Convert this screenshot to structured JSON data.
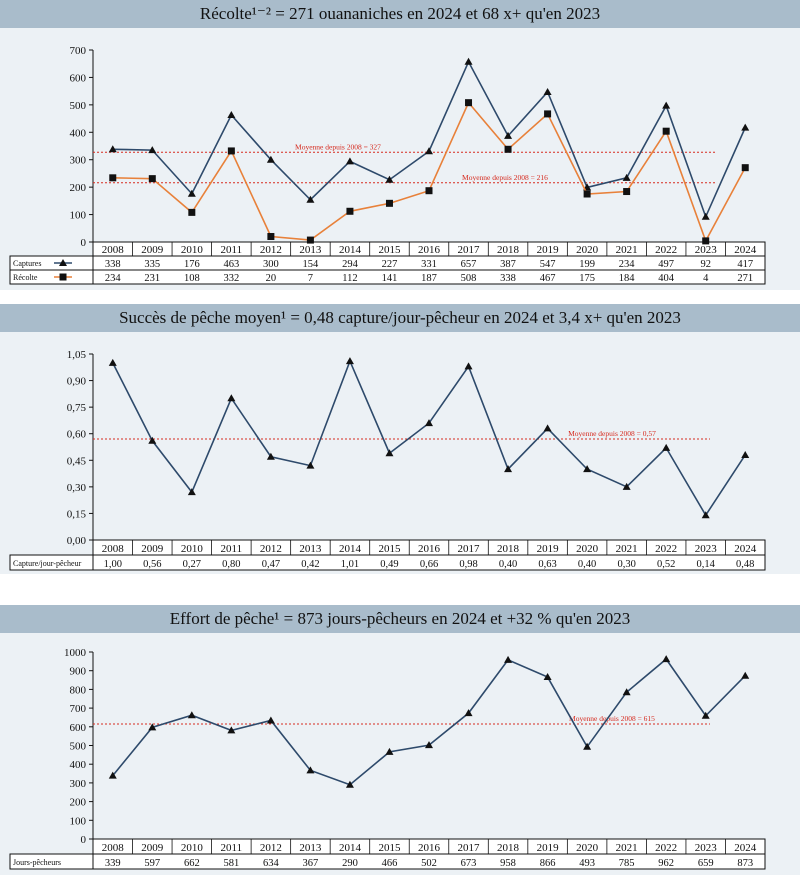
{
  "titles": [
    "Récolte¹⁻² = 271 ouananiches en 2024 et 68 x+ qu'en 2023",
    "Succès de pêche moyen¹ = 0,48 capture/jour-pêcheur en 2024 et 3,4 x+ qu'en 2023",
    "Effort de pêche¹ = 873 jours-pêcheurs en 2024 et +32 % qu'en 2023"
  ],
  "colors": {
    "band": "#a9bccb",
    "panel": "#ecf1f5",
    "navy": "#2e4a6b",
    "orange": "#e8813a",
    "avg": "#d62a1e"
  },
  "chart_data": [
    {
      "type": "line",
      "title": "Récolte¹⁻² = 271 ouananiches en 2024 et 68 x+ qu'en 2023",
      "categories": [
        "2008",
        "2009",
        "2010",
        "2011",
        "2012",
        "2013",
        "2014",
        "2015",
        "2016",
        "2017",
        "2018",
        "2019",
        "2020",
        "2021",
        "2022",
        "2023",
        "2024"
      ],
      "ylim": [
        0,
        700
      ],
      "yticks": [
        "0",
        "100",
        "200",
        "300",
        "400",
        "500",
        "600",
        "700"
      ],
      "series": [
        {
          "name": "Captures",
          "marker": "triangle",
          "color": "#2e4a6b",
          "values": [
            338,
            335,
            176,
            463,
            300,
            154,
            294,
            227,
            331,
            657,
            387,
            547,
            199,
            234,
            497,
            92,
            417
          ],
          "labels": [
            "338",
            "335",
            "176",
            "463",
            "300",
            "154",
            "294",
            "227",
            "331",
            "657",
            "387",
            "547",
            "199",
            "234",
            "497",
            "92",
            "417"
          ]
        },
        {
          "name": "Récolte",
          "marker": "square",
          "color": "#e8813a",
          "values": [
            234,
            231,
            108,
            332,
            20,
            7,
            112,
            141,
            187,
            508,
            338,
            467,
            175,
            184,
            404,
            4,
            271
          ],
          "labels": [
            "234",
            "231",
            "108",
            "332",
            "20",
            "7",
            "112",
            "141",
            "187",
            "508",
            "338",
            "467",
            "175",
            "184",
            "404",
            "4",
            "271"
          ]
        }
      ],
      "averages": [
        {
          "label": "Moyenne depuis 2008 = 327",
          "value": 327
        },
        {
          "label": "Moyenne depuis 2008 = 216",
          "value": 216
        }
      ]
    },
    {
      "type": "line",
      "title": "Succès de pêche moyen¹ = 0,48 capture/jour-pêcheur en 2024 et 3,4 x+ qu'en 2023",
      "categories": [
        "2008",
        "2009",
        "2010",
        "2011",
        "2012",
        "2013",
        "2014",
        "2015",
        "2016",
        "2017",
        "2018",
        "2019",
        "2020",
        "2021",
        "2022",
        "2023",
        "2024"
      ],
      "ylim": [
        0,
        1.05
      ],
      "yticks": [
        "0,00",
        "0,15",
        "0,30",
        "0,45",
        "0,60",
        "0,75",
        "0,90",
        "1,05"
      ],
      "series": [
        {
          "name": "Capture/jour-pêcheur",
          "marker": "triangle",
          "color": "#2e4a6b",
          "values": [
            1.0,
            0.56,
            0.27,
            0.8,
            0.47,
            0.42,
            1.01,
            0.49,
            0.66,
            0.98,
            0.4,
            0.63,
            0.4,
            0.3,
            0.52,
            0.14,
            0.48
          ],
          "labels": [
            "1,00",
            "0,56",
            "0,27",
            "0,80",
            "0,47",
            "0,42",
            "1,01",
            "0,49",
            "0,66",
            "0,98",
            "0,40",
            "0,63",
            "0,40",
            "0,30",
            "0,52",
            "0,14",
            "0,48"
          ]
        }
      ],
      "averages": [
        {
          "label": "Moyenne depuis 2008 = 0,57",
          "value": 0.57
        }
      ]
    },
    {
      "type": "line",
      "title": "Effort de pêche¹ = 873 jours-pêcheurs en 2024 et +32 % qu'en 2023",
      "categories": [
        "2008",
        "2009",
        "2010",
        "2011",
        "2012",
        "2013",
        "2014",
        "2015",
        "2016",
        "2017",
        "2018",
        "2019",
        "2020",
        "2021",
        "2022",
        "2023",
        "2024"
      ],
      "ylim": [
        0,
        1000
      ],
      "yticks": [
        "0",
        "100",
        "200",
        "300",
        "400",
        "500",
        "600",
        "700",
        "800",
        "900",
        "1000"
      ],
      "series": [
        {
          "name": "Jours-pêcheurs",
          "marker": "triangle",
          "color": "#2e4a6b",
          "values": [
            339,
            597,
            662,
            581,
            634,
            367,
            290,
            466,
            502,
            673,
            958,
            866,
            493,
            785,
            962,
            659,
            873
          ],
          "labels": [
            "339",
            "597",
            "662",
            "581",
            "634",
            "367",
            "290",
            "466",
            "502",
            "673",
            "958",
            "866",
            "493",
            "785",
            "962",
            "659",
            "873"
          ]
        }
      ],
      "averages": [
        {
          "label": "Moyenne depuis 2008 = 615",
          "value": 615
        }
      ]
    }
  ]
}
